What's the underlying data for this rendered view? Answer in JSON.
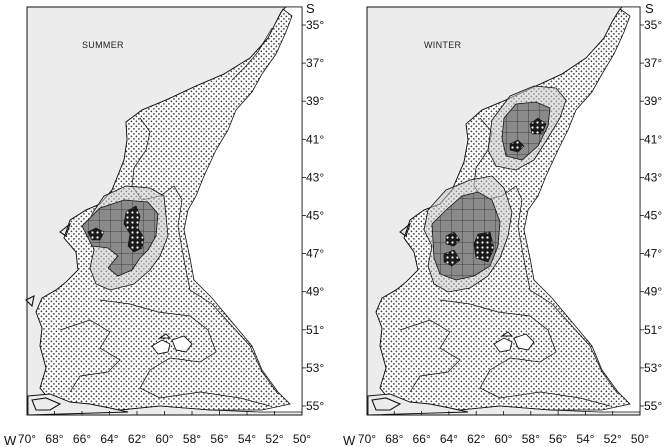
{
  "panels": [
    {
      "id": "summer",
      "title": "SUMMER",
      "lat_unit": "S",
      "lon_unit": "W"
    },
    {
      "id": "winter",
      "title": "WINTER",
      "lat_unit": "S",
      "lon_unit": "W"
    }
  ],
  "lat_labels": [
    "35°",
    "37°",
    "39°",
    "41°",
    "43°",
    "45°",
    "47°",
    "49°",
    "51°",
    "53°",
    "55°"
  ],
  "lon_labels": [
    "70°",
    "68°",
    "66°",
    "64°",
    "62°",
    "60°",
    "58°",
    "56°",
    "54°",
    "52°",
    "50°"
  ]
}
